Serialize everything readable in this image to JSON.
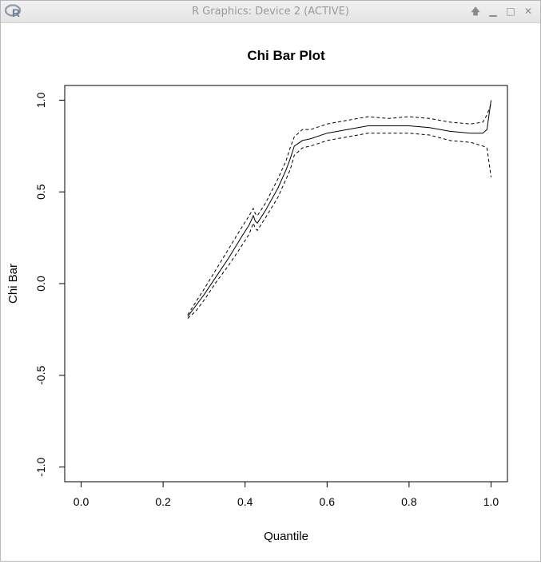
{
  "window": {
    "title": "R Graphics: Device 2 (ACTIVE)",
    "icons": {
      "app": "r-logo-icon",
      "up": "arrow-up-icon",
      "minimize": "minimize-icon",
      "maximize": "maximize-icon",
      "close": "close-icon"
    }
  },
  "chart_data": {
    "type": "line",
    "title": "Chi Bar Plot",
    "xlabel": "Quantile",
    "ylabel": "Chi Bar",
    "xlim": [
      -0.04,
      1.04
    ],
    "ylim": [
      -1.08,
      1.08
    ],
    "xticks": [
      "0.0",
      "0.2",
      "0.4",
      "0.6",
      "0.8",
      "1.0"
    ],
    "xtick_values": [
      0,
      0.2,
      0.4,
      0.6,
      0.8,
      1.0
    ],
    "yticks": [
      "-1.0",
      "-0.5",
      "0.0",
      "0.5",
      "1.0"
    ],
    "ytick_values": [
      -1.0,
      -0.5,
      0.0,
      0.5,
      1.0
    ],
    "grid": false,
    "legend": "none",
    "series": [
      {
        "style": "solid",
        "x": [
          0.26,
          0.28,
          0.3,
          0.33,
          0.36,
          0.39,
          0.41,
          0.42,
          0.425,
          0.43,
          0.45,
          0.48,
          0.5,
          0.51,
          0.52,
          0.54,
          0.56,
          0.6,
          0.65,
          0.7,
          0.75,
          0.8,
          0.85,
          0.9,
          0.95,
          0.98,
          0.99,
          1.0
        ],
        "y": [
          -0.18,
          -0.12,
          -0.06,
          0.04,
          0.14,
          0.25,
          0.32,
          0.37,
          0.34,
          0.33,
          0.4,
          0.52,
          0.62,
          0.68,
          0.75,
          0.78,
          0.79,
          0.82,
          0.84,
          0.86,
          0.86,
          0.86,
          0.85,
          0.83,
          0.82,
          0.82,
          0.84,
          1.0
        ]
      },
      {
        "style": "dashed",
        "x": [
          0.26,
          0.28,
          0.3,
          0.33,
          0.36,
          0.39,
          0.41,
          0.42,
          0.425,
          0.43,
          0.45,
          0.48,
          0.5,
          0.51,
          0.52,
          0.54,
          0.56,
          0.6,
          0.65,
          0.7,
          0.75,
          0.8,
          0.85,
          0.9,
          0.95,
          0.98,
          0.99,
          1.0
        ],
        "y": [
          -0.17,
          -0.1,
          -0.03,
          0.08,
          0.19,
          0.3,
          0.37,
          0.41,
          0.38,
          0.37,
          0.44,
          0.57,
          0.67,
          0.74,
          0.8,
          0.84,
          0.84,
          0.87,
          0.89,
          0.91,
          0.9,
          0.91,
          0.9,
          0.88,
          0.87,
          0.88,
          0.92,
          0.98
        ]
      },
      {
        "style": "dashed",
        "x": [
          0.26,
          0.28,
          0.3,
          0.33,
          0.36,
          0.39,
          0.41,
          0.42,
          0.425,
          0.43,
          0.45,
          0.48,
          0.5,
          0.51,
          0.52,
          0.54,
          0.56,
          0.6,
          0.65,
          0.7,
          0.75,
          0.8,
          0.85,
          0.9,
          0.95,
          0.98,
          0.99,
          1.0
        ],
        "y": [
          -0.19,
          -0.15,
          -0.09,
          0.01,
          0.1,
          0.2,
          0.27,
          0.33,
          0.3,
          0.29,
          0.36,
          0.47,
          0.57,
          0.62,
          0.7,
          0.74,
          0.75,
          0.78,
          0.8,
          0.82,
          0.82,
          0.82,
          0.81,
          0.78,
          0.77,
          0.75,
          0.74,
          0.58
        ]
      }
    ]
  }
}
